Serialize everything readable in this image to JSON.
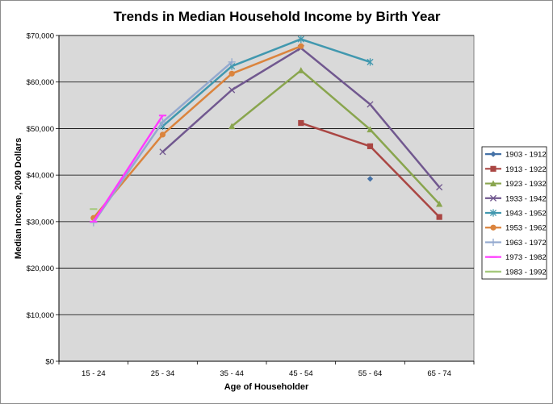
{
  "chart_data": {
    "type": "line",
    "title": "Trends in Median Household Income by Birth Year",
    "xlabel": "Age of Householder",
    "ylabel": "Median Income, 2009 Dollars",
    "categories": [
      "15 - 24",
      "25 - 34",
      "35 - 44",
      "45 - 54",
      "55 - 64",
      "65 - 74"
    ],
    "ylim": [
      0,
      70000
    ],
    "yticks": [
      0,
      10000,
      20000,
      30000,
      40000,
      50000,
      60000,
      70000
    ],
    "ytick_labels": [
      "$0",
      "$10,000",
      "$20,000",
      "$30,000",
      "$40,000",
      "$50,000",
      "$60,000",
      "$70,000"
    ],
    "grid": true,
    "plot_background": "#d9d9d9",
    "legend_position": "right",
    "series": [
      {
        "name": "1903 - 1912",
        "color": "#4572a7",
        "marker": "diamond",
        "values": [
          null,
          null,
          null,
          null,
          39200,
          null
        ]
      },
      {
        "name": "1913 - 1922",
        "color": "#aa4643",
        "marker": "square",
        "values": [
          null,
          null,
          null,
          51200,
          46200,
          31000
        ]
      },
      {
        "name": "1923 - 1932",
        "color": "#89a54e",
        "marker": "triangle",
        "values": [
          null,
          null,
          50500,
          62500,
          49800,
          33800
        ]
      },
      {
        "name": "1933 - 1942",
        "color": "#71588f",
        "marker": "x",
        "values": [
          null,
          45000,
          58300,
          67300,
          55200,
          37400
        ]
      },
      {
        "name": "1943 - 1952",
        "color": "#4198af",
        "marker": "star",
        "values": [
          null,
          50500,
          63400,
          69200,
          64300,
          null
        ]
      },
      {
        "name": "1953 - 1962",
        "color": "#db843d",
        "marker": "circle",
        "values": [
          30800,
          48700,
          61800,
          67700,
          null,
          null
        ]
      },
      {
        "name": "1963 - 1972",
        "color": "#93a9cf",
        "marker": "plus",
        "values": [
          29800,
          51400,
          64300,
          null,
          null,
          null
        ]
      },
      {
        "name": "1973 - 1982",
        "color": "#ff3cff",
        "marker": "dash",
        "values": [
          30000,
          52800,
          null,
          null,
          null,
          null
        ]
      },
      {
        "name": "1983 - 1992",
        "color": "#a4c87b",
        "marker": "dash",
        "values": [
          32700,
          null,
          null,
          null,
          null,
          null
        ]
      }
    ]
  }
}
